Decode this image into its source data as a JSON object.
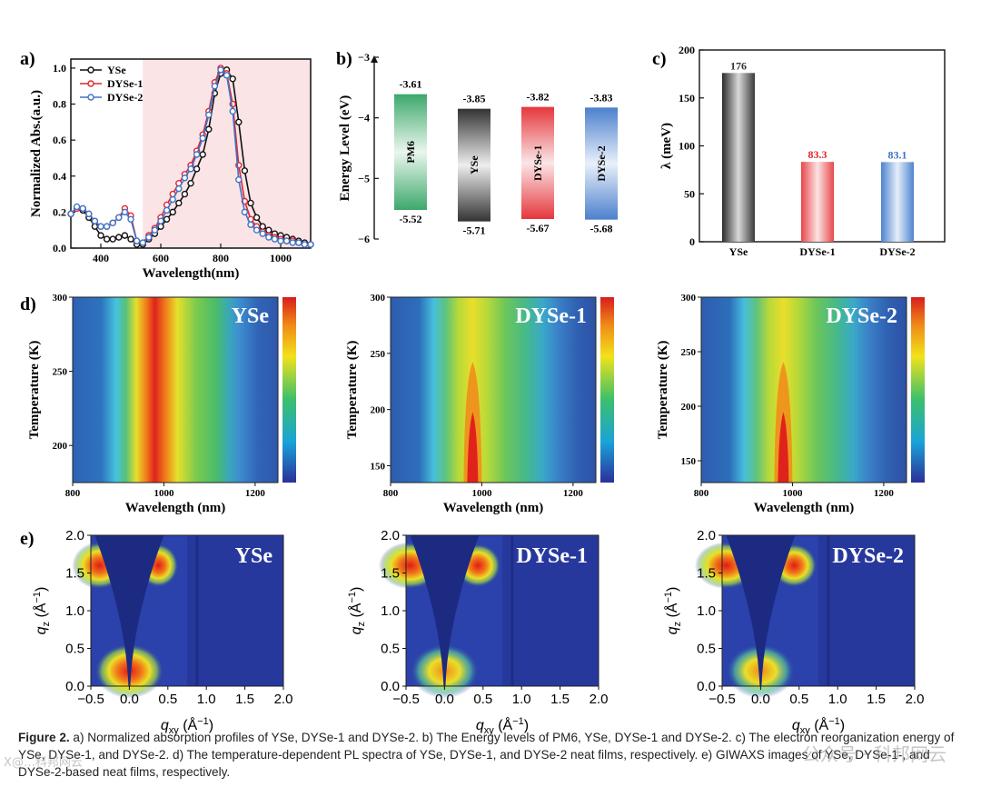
{
  "figure": {
    "caption_label": "Figure 2.",
    "caption_text": " a) Normalized absorption profiles of YSe, DYSe-1 and DYSe-2. b) The Energy levels of PM6, YSe, DYSe-1 and DYSe-2. c) The electron reorganization energy of YSe, DYSe-1, and DYSe-2. d) The temperature-dependent PL spectra of YSe, DYSe-1, and DYSe-2 neat films, respectively. e) GIWAXS images of YSe, DYSe-1-, and DYSe-2-based neat films, respectively.",
    "watermark_right": "公众号 · 科邦网云",
    "watermark_left": "X@…科邦网云"
  },
  "colors": {
    "yse": "#111111",
    "dyse1": "#e0262b",
    "dyse2": "#3f73c8",
    "pm6": "#3aa56a",
    "absorption_band": "#fbe4e6"
  },
  "chart_data": [
    {
      "panel": "a)",
      "type": "line",
      "xlabel": "Wavelength(nm)",
      "ylabel": "Normalized Abs.(a.u.)",
      "xlim": [
        300,
        1100
      ],
      "ylim": [
        0,
        1.05
      ],
      "xticks": [
        400,
        600,
        800,
        1000
      ],
      "yticks": [
        0.0,
        0.2,
        0.4,
        0.6,
        0.8,
        1.0
      ],
      "legend_position": "top-left",
      "x": [
        300,
        320,
        340,
        360,
        380,
        400,
        420,
        440,
        460,
        480,
        500,
        520,
        540,
        560,
        580,
        600,
        620,
        640,
        660,
        680,
        700,
        720,
        740,
        760,
        780,
        800,
        820,
        840,
        860,
        880,
        900,
        920,
        940,
        960,
        980,
        1000,
        1020,
        1040,
        1060,
        1080,
        1100
      ],
      "series": [
        {
          "name": "YSe",
          "values": [
            0.19,
            0.22,
            0.21,
            0.17,
            0.12,
            0.07,
            0.05,
            0.05,
            0.06,
            0.07,
            0.05,
            0.02,
            0.02,
            0.05,
            0.08,
            0.12,
            0.16,
            0.2,
            0.25,
            0.3,
            0.36,
            0.44,
            0.52,
            0.66,
            0.86,
            0.97,
            0.99,
            0.94,
            0.7,
            0.43,
            0.25,
            0.17,
            0.12,
            0.1,
            0.08,
            0.07,
            0.06,
            0.05,
            0.04,
            0.03,
            0.02
          ]
        },
        {
          "name": "DYSe-1",
          "values": [
            0.19,
            0.22,
            0.22,
            0.19,
            0.15,
            0.12,
            0.12,
            0.14,
            0.17,
            0.22,
            0.18,
            0.04,
            0.03,
            0.07,
            0.11,
            0.17,
            0.24,
            0.3,
            0.36,
            0.41,
            0.46,
            0.54,
            0.63,
            0.76,
            0.92,
            1.0,
            0.97,
            0.8,
            0.46,
            0.26,
            0.16,
            0.12,
            0.09,
            0.07,
            0.06,
            0.05,
            0.04,
            0.04,
            0.03,
            0.02,
            0.02
          ]
        },
        {
          "name": "DYSe-2",
          "values": [
            0.19,
            0.23,
            0.22,
            0.19,
            0.15,
            0.12,
            0.12,
            0.14,
            0.17,
            0.2,
            0.16,
            0.04,
            0.03,
            0.06,
            0.1,
            0.15,
            0.21,
            0.27,
            0.33,
            0.39,
            0.44,
            0.52,
            0.61,
            0.74,
            0.9,
            0.99,
            0.96,
            0.76,
            0.38,
            0.2,
            0.13,
            0.1,
            0.08,
            0.06,
            0.05,
            0.04,
            0.04,
            0.03,
            0.03,
            0.02,
            0.02
          ]
        }
      ]
    },
    {
      "panel": "b)",
      "type": "bar",
      "ylabel": "Energy Level (eV)",
      "ylim": [
        -6,
        -3
      ],
      "yticks": [
        -3,
        -4,
        -5,
        -6
      ],
      "yticklabels": [
        "−3",
        "−4",
        "−5",
        "−6"
      ],
      "categories": [
        "PM6",
        "YSe",
        "DYSe-1",
        "DYSe-2"
      ],
      "homo": [
        -5.52,
        -5.71,
        -5.67,
        -5.68
      ],
      "lumo": [
        -3.61,
        -3.85,
        -3.82,
        -3.83
      ],
      "homo_labels": [
        "-5.52",
        "-5.71",
        "-5.67",
        "-5.68"
      ],
      "lumo_labels": [
        "-3.61",
        "-3.85",
        "-3.82",
        "-3.83"
      ]
    },
    {
      "panel": "c)",
      "type": "bar",
      "ylabel": "λ (meV)",
      "ylim": [
        0,
        200
      ],
      "yticks": [
        0,
        50,
        100,
        150,
        200
      ],
      "categories": [
        "YSe",
        "DYSe-1",
        "DYSe-2"
      ],
      "values": [
        176,
        83.3,
        83.1
      ],
      "value_labels": [
        "176",
        "83.3",
        "83.1"
      ]
    },
    {
      "panel": "d)",
      "type": "heatmap",
      "xlabel": "Wavelength (nm)",
      "ylabel": "Temperature (K)",
      "xticks": [
        800,
        1000,
        1200
      ],
      "xlim": [
        800,
        1250
      ],
      "maps": [
        {
          "name": "YSe",
          "ylim": [
            175,
            300
          ],
          "yticks": [
            200,
            250,
            300
          ]
        },
        {
          "name": "DYSe-1",
          "ylim": [
            135,
            300
          ],
          "yticks": [
            150,
            200,
            250,
            300
          ]
        },
        {
          "name": "DYSe-2",
          "ylim": [
            130,
            300
          ],
          "yticks": [
            150,
            200,
            250,
            300
          ]
        }
      ]
    },
    {
      "panel": "e)",
      "type": "heatmap",
      "xlabel": "q",
      "xlabel_sub": "xy",
      "ylabel": "q",
      "ylabel_sub": "z",
      "unit": " (Å",
      "unit_sup": "−1",
      "unit_close": ")",
      "xlim": [
        -0.5,
        2.0
      ],
      "ylim": [
        0.0,
        2.0
      ],
      "xticks": [
        -0.5,
        0.0,
        0.5,
        1.0,
        1.5,
        2.0
      ],
      "xticklabels": [
        "−0.5",
        "0.0",
        "0.5",
        "1.0",
        "1.5",
        "2.0"
      ],
      "yticks": [
        0.0,
        0.5,
        1.0,
        1.5,
        2.0
      ],
      "yticklabels": [
        "0.0",
        "0.5",
        "1.0",
        "1.5",
        "2.0"
      ],
      "maps": [
        {
          "name": "YSe"
        },
        {
          "name": "DYSe-1"
        },
        {
          "name": "DYSe-2"
        }
      ]
    }
  ]
}
